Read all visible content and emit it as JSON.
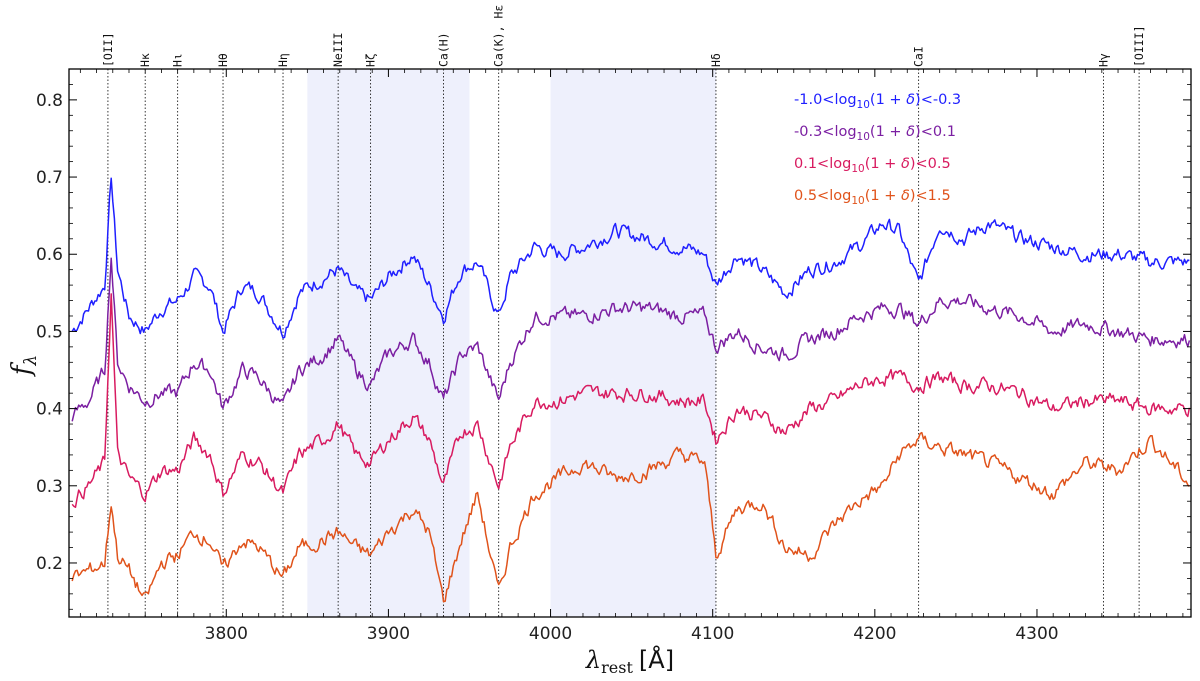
{
  "chart_data": {
    "type": "line",
    "xlabel": "λ",
    "xlabel_sub": "rest",
    "xlabel_unit": "[Å]",
    "ylabel": "f",
    "ylabel_sub": "λ",
    "xlim": [
      3703,
      4395
    ],
    "ylim": [
      0.13,
      0.84
    ],
    "xticks": [
      3800,
      3900,
      4000,
      4100,
      4200,
      4300
    ],
    "yticks": [
      0.2,
      0.3,
      0.4,
      0.5,
      0.6,
      0.7,
      0.8
    ],
    "xtick_labels": [
      "3800",
      "3900",
      "4000",
      "4100",
      "4200",
      "4300"
    ],
    "ytick_labels": [
      "0.2",
      "0.3",
      "0.4",
      "0.5",
      "0.6",
      "0.7",
      "0.8"
    ],
    "shaded_regions": [
      [
        3850,
        3950
      ],
      [
        4000,
        4102
      ]
    ],
    "spectral_lines": [
      {
        "label": "[OII]",
        "x": 3727
      },
      {
        "label": "Hκ",
        "x": 3750
      },
      {
        "label": "Hι",
        "x": 3770
      },
      {
        "label": "Hθ",
        "x": 3798
      },
      {
        "label": "Hη",
        "x": 3835
      },
      {
        "label": "NeIII",
        "x": 3869
      },
      {
        "label": "Hζ",
        "x": 3889
      },
      {
        "label": "Ca(H)",
        "x": 3934
      },
      {
        "label": "Ca(K), Hε",
        "x": 3968
      },
      {
        "label": "Hδ",
        "x": 4102
      },
      {
        "label": "CaI",
        "x": 4227
      },
      {
        "label": "Hγ",
        "x": 4341
      },
      {
        "label": "[OIII]",
        "x": 4363
      }
    ],
    "legend_position": "top-right",
    "series": [
      {
        "name": "-1.0<log10(1+δ)<-0.3",
        "legend_parts": [
          "-1.0<log",
          "10",
          "(1 + ",
          "δ",
          ")<-0.3"
        ],
        "color": "#1f1fff",
        "x": [
          3705,
          3715,
          3725,
          3729,
          3733,
          3740,
          3750,
          3760,
          3770,
          3780,
          3790,
          3798,
          3810,
          3820,
          3835,
          3845,
          3860,
          3869,
          3880,
          3889,
          3900,
          3915,
          3925,
          3934,
          3945,
          3955,
          3968,
          3975,
          3990,
          4005,
          4020,
          4040,
          4060,
          4080,
          4095,
          4102,
          4115,
          4130,
          4145,
          4160,
          4175,
          4190,
          4205,
          4215,
          4227,
          4240,
          4255,
          4270,
          4290,
          4310,
          4330,
          4350,
          4370,
          4395
        ],
        "y": [
          0.5,
          0.53,
          0.56,
          0.7,
          0.58,
          0.52,
          0.5,
          0.53,
          0.54,
          0.57,
          0.56,
          0.5,
          0.56,
          0.55,
          0.5,
          0.55,
          0.57,
          0.58,
          0.55,
          0.54,
          0.57,
          0.6,
          0.56,
          0.52,
          0.58,
          0.59,
          0.52,
          0.57,
          0.61,
          0.6,
          0.61,
          0.63,
          0.62,
          0.61,
          0.6,
          0.56,
          0.6,
          0.58,
          0.55,
          0.58,
          0.59,
          0.61,
          0.64,
          0.63,
          0.56,
          0.64,
          0.62,
          0.64,
          0.62,
          0.61,
          0.6,
          0.6,
          0.59,
          0.59
        ]
      },
      {
        "name": "-0.3<log10(1+δ)<0.1",
        "legend_parts": [
          "-0.3<log",
          "10",
          "(1 + ",
          "δ",
          ")<0.1"
        ],
        "color": "#7b1fa2",
        "x": [
          3705,
          3715,
          3725,
          3729,
          3733,
          3740,
          3750,
          3760,
          3770,
          3780,
          3790,
          3798,
          3810,
          3820,
          3835,
          3845,
          3860,
          3869,
          3880,
          3889,
          3900,
          3915,
          3925,
          3934,
          3945,
          3955,
          3968,
          3975,
          3990,
          4005,
          4020,
          4040,
          4060,
          4080,
          4095,
          4102,
          4115,
          4130,
          4145,
          4160,
          4175,
          4190,
          4205,
          4215,
          4227,
          4240,
          4255,
          4270,
          4290,
          4310,
          4330,
          4350,
          4370,
          4395
        ],
        "y": [
          0.39,
          0.41,
          0.45,
          0.6,
          0.46,
          0.43,
          0.41,
          0.42,
          0.42,
          0.46,
          0.45,
          0.4,
          0.45,
          0.44,
          0.4,
          0.45,
          0.47,
          0.49,
          0.45,
          0.43,
          0.47,
          0.49,
          0.46,
          0.41,
          0.47,
          0.48,
          0.41,
          0.46,
          0.52,
          0.52,
          0.52,
          0.53,
          0.53,
          0.52,
          0.52,
          0.48,
          0.5,
          0.48,
          0.47,
          0.49,
          0.5,
          0.52,
          0.53,
          0.53,
          0.51,
          0.54,
          0.54,
          0.53,
          0.52,
          0.5,
          0.51,
          0.5,
          0.49,
          0.49
        ]
      },
      {
        "name": "0.1<log10(1+δ)<0.5",
        "legend_parts": [
          "0.1<log",
          "10",
          "(1 + ",
          "δ",
          ")<0.5"
        ],
        "color": "#d81b60",
        "x": [
          3705,
          3715,
          3725,
          3729,
          3733,
          3740,
          3750,
          3760,
          3770,
          3780,
          3790,
          3798,
          3810,
          3820,
          3835,
          3845,
          3860,
          3869,
          3880,
          3889,
          3900,
          3915,
          3925,
          3934,
          3945,
          3955,
          3968,
          3975,
          3990,
          4005,
          4020,
          4040,
          4060,
          4080,
          4095,
          4102,
          4115,
          4130,
          4145,
          4160,
          4175,
          4190,
          4205,
          4215,
          4227,
          4240,
          4255,
          4270,
          4290,
          4310,
          4330,
          4350,
          4370,
          4395
        ],
        "y": [
          0.28,
          0.3,
          0.33,
          0.55,
          0.34,
          0.31,
          0.29,
          0.32,
          0.32,
          0.36,
          0.34,
          0.29,
          0.34,
          0.33,
          0.29,
          0.34,
          0.36,
          0.38,
          0.34,
          0.33,
          0.36,
          0.39,
          0.36,
          0.3,
          0.37,
          0.38,
          0.3,
          0.35,
          0.41,
          0.41,
          0.42,
          0.42,
          0.42,
          0.41,
          0.41,
          0.36,
          0.4,
          0.39,
          0.37,
          0.4,
          0.41,
          0.43,
          0.44,
          0.44,
          0.43,
          0.44,
          0.43,
          0.43,
          0.42,
          0.4,
          0.41,
          0.41,
          0.4,
          0.4
        ]
      },
      {
        "name": "0.5<log10(1+δ)<1.5",
        "legend_parts": [
          "0.5<log",
          "10",
          "(1 + ",
          "δ",
          ")<1.5"
        ],
        "color": "#e0531b",
        "x": [
          3705,
          3715,
          3725,
          3729,
          3733,
          3740,
          3750,
          3760,
          3770,
          3780,
          3790,
          3798,
          3810,
          3820,
          3835,
          3845,
          3860,
          3869,
          3880,
          3889,
          3900,
          3915,
          3925,
          3934,
          3945,
          3955,
          3968,
          3975,
          3990,
          4005,
          4020,
          4040,
          4060,
          4080,
          4095,
          4102,
          4115,
          4130,
          4145,
          4160,
          4175,
          4190,
          4205,
          4215,
          4227,
          4240,
          4255,
          4270,
          4290,
          4310,
          4330,
          4350,
          4370,
          4395
        ],
        "y": [
          0.18,
          0.19,
          0.2,
          0.28,
          0.21,
          0.19,
          0.15,
          0.2,
          0.21,
          0.24,
          0.23,
          0.19,
          0.23,
          0.22,
          0.18,
          0.22,
          0.23,
          0.24,
          0.22,
          0.21,
          0.24,
          0.27,
          0.24,
          0.15,
          0.23,
          0.29,
          0.16,
          0.22,
          0.29,
          0.31,
          0.33,
          0.31,
          0.32,
          0.34,
          0.33,
          0.21,
          0.27,
          0.28,
          0.22,
          0.21,
          0.25,
          0.28,
          0.3,
          0.34,
          0.36,
          0.35,
          0.34,
          0.33,
          0.31,
          0.29,
          0.33,
          0.32,
          0.36,
          0.3
        ]
      }
    ]
  }
}
